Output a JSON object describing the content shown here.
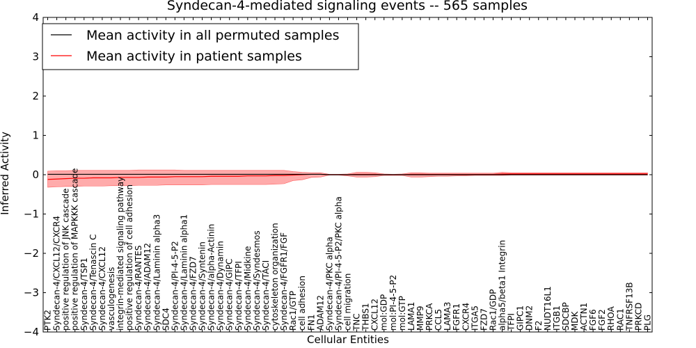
{
  "chart_data": {
    "type": "line",
    "title": "Syndecan-4-mediated signaling events -- 565 samples",
    "xlabel": "Cellular Entities",
    "ylabel": "Inferred Activity",
    "ylim": [
      -4,
      4
    ],
    "yticks": [
      -4,
      -3,
      -2,
      -1,
      0,
      1,
      2,
      3,
      4
    ],
    "grid": false,
    "legend_position": "top-left",
    "categories": [
      "PTK2",
      "Syndecan-4/CXCL12/CXCR4",
      "positive regulation of JNK cascade",
      "positive regulation of MAPKKK cascade",
      "Syndecan-4/TSP1",
      "Syndecan-4/Tenascin C",
      "Syndecan-4/CXCL12",
      "vasculogenesis",
      "integrin-mediated signaling pathway",
      "positive regulation of cell adhesion",
      "Syndecan-4/RANTES",
      "Syndecan-4/ADAM12",
      "Syndecan-4/Laminin alpha3",
      "SDC4",
      "Syndecan-4/PI-4-5-P2",
      "Syndecan-4/Laminin alpha1",
      "Syndecan-4/FZD7",
      "Syndecan-4/Syntenin",
      "Syndecan-4/alpha-Actinin",
      "Syndecan-4/Dynamin",
      "Syndecan-4/GIPC",
      "Syndecan-4/TFPI",
      "Syndecan-4/Midkine",
      "Syndecan-4/Syndesmos",
      "Syndecan-4/TACI",
      "cytoskeleton organization",
      "Syndecan-4/FGFR1/FGF",
      "Rac1/GTP",
      "cell adhesion",
      "FN1",
      "ADAM12",
      "Syndecan-4/PKC alpha",
      "Syndecan-4/PI-4-5-P2/PKC alpha",
      "cell migration",
      "TNC",
      "THBS1",
      "CXCL12",
      "mol:GDP",
      "mol:PI-4-5-P2",
      "mol:GTP",
      "LAMA1",
      "MMP9",
      "PRKCA",
      "CCL5",
      "LAMA3",
      "FGFR1",
      "CXCR4",
      "ITGA5",
      "FZD7",
      "Rac1/GDP",
      "alpha5/beta1 Integrin",
      "TFPI",
      "GIPC1",
      "DNM2",
      "F2",
      "NUDT16L1",
      "ITGB1",
      "SDCBP",
      "MDK",
      "ACTN1",
      "FGF6",
      "FGF2",
      "RHOA",
      "RAC1",
      "TNFRSF13B",
      "PRKCD",
      "PLG"
    ],
    "series": [
      {
        "name": "Mean activity in all permuted samples",
        "color": "#000000",
        "values": [
          0.01,
          0.01,
          0.01,
          0.01,
          0.01,
          0.01,
          0.01,
          0.01,
          0.01,
          0.01,
          0.01,
          0.01,
          0.01,
          0.01,
          0.01,
          0.01,
          0.01,
          0.01,
          0.01,
          0.01,
          0.01,
          0.01,
          0.01,
          0.01,
          0.01,
          0.01,
          0.01,
          0.01,
          0.01,
          0.01,
          0.01,
          0.0,
          0.0,
          0.0,
          0.0,
          0.0,
          0.0,
          0.0,
          0.0,
          0.0,
          0.0,
          0.0,
          0.0,
          0.0,
          0.0,
          0.0,
          0.0,
          0.0,
          0.0,
          0.0,
          0.0,
          0.0,
          0.0,
          0.0,
          0.0,
          0.0,
          0.0,
          0.0,
          0.0,
          0.0,
          0.0,
          0.0,
          0.0,
          0.0,
          0.0,
          0.0,
          0.0
        ]
      },
      {
        "name": "Mean activity in patient samples",
        "color": "#ff0000",
        "values": [
          -0.12,
          -0.11,
          -0.1,
          -0.09,
          -0.09,
          -0.08,
          -0.08,
          -0.08,
          -0.07,
          -0.07,
          -0.07,
          -0.06,
          -0.06,
          -0.06,
          -0.05,
          -0.05,
          -0.05,
          -0.05,
          -0.04,
          -0.04,
          -0.04,
          -0.04,
          -0.03,
          -0.03,
          -0.03,
          -0.02,
          -0.02,
          -0.01,
          0.0,
          0.01,
          0.01,
          0.0,
          0.0,
          0.0,
          0.01,
          0.01,
          0.01,
          0.0,
          0.0,
          0.0,
          0.01,
          0.01,
          0.01,
          0.01,
          0.01,
          0.01,
          0.01,
          0.01,
          0.01,
          0.01,
          0.02,
          0.02,
          0.02,
          0.02,
          0.02,
          0.02,
          0.02,
          0.02,
          0.02,
          0.02,
          0.02,
          0.02,
          0.02,
          0.02,
          0.02,
          0.02,
          0.02
        ]
      }
    ],
    "band": {
      "name": "patient samples spread",
      "color": "#ff0000",
      "upper": [
        0.09,
        0.1,
        0.1,
        0.11,
        0.11,
        0.11,
        0.11,
        0.11,
        0.11,
        0.11,
        0.12,
        0.12,
        0.12,
        0.12,
        0.12,
        0.11,
        0.11,
        0.11,
        0.11,
        0.11,
        0.11,
        0.11,
        0.11,
        0.11,
        0.11,
        0.11,
        0.11,
        0.08,
        0.06,
        0.05,
        0.05,
        0.01,
        0.01,
        0.02,
        0.06,
        0.06,
        0.05,
        0.02,
        0.01,
        0.02,
        0.05,
        0.05,
        0.04,
        0.04,
        0.04,
        0.04,
        0.04,
        0.04,
        0.04,
        0.04,
        0.06,
        0.05,
        0.05,
        0.05,
        0.05,
        0.05,
        0.05,
        0.05,
        0.05,
        0.05,
        0.05,
        0.05,
        0.05,
        0.05,
        0.05,
        0.05,
        0.05
      ],
      "lower": [
        -0.32,
        -0.31,
        -0.3,
        -0.3,
        -0.29,
        -0.29,
        -0.29,
        -0.28,
        -0.28,
        -0.28,
        -0.27,
        -0.27,
        -0.27,
        -0.26,
        -0.26,
        -0.26,
        -0.26,
        -0.26,
        -0.25,
        -0.25,
        -0.25,
        -0.25,
        -0.25,
        -0.25,
        -0.25,
        -0.24,
        -0.23,
        -0.15,
        -0.13,
        -0.07,
        -0.06,
        -0.01,
        -0.01,
        -0.03,
        -0.06,
        -0.06,
        -0.05,
        -0.02,
        -0.02,
        -0.02,
        -0.06,
        -0.06,
        -0.05,
        -0.04,
        -0.04,
        -0.03,
        -0.03,
        -0.02,
        -0.02,
        -0.02,
        -0.02,
        -0.01,
        -0.01,
        -0.01,
        -0.01,
        -0.01,
        -0.01,
        -0.01,
        -0.01,
        -0.01,
        -0.01,
        -0.01,
        -0.01,
        -0.01,
        -0.01,
        -0.01,
        -0.01
      ]
    }
  }
}
